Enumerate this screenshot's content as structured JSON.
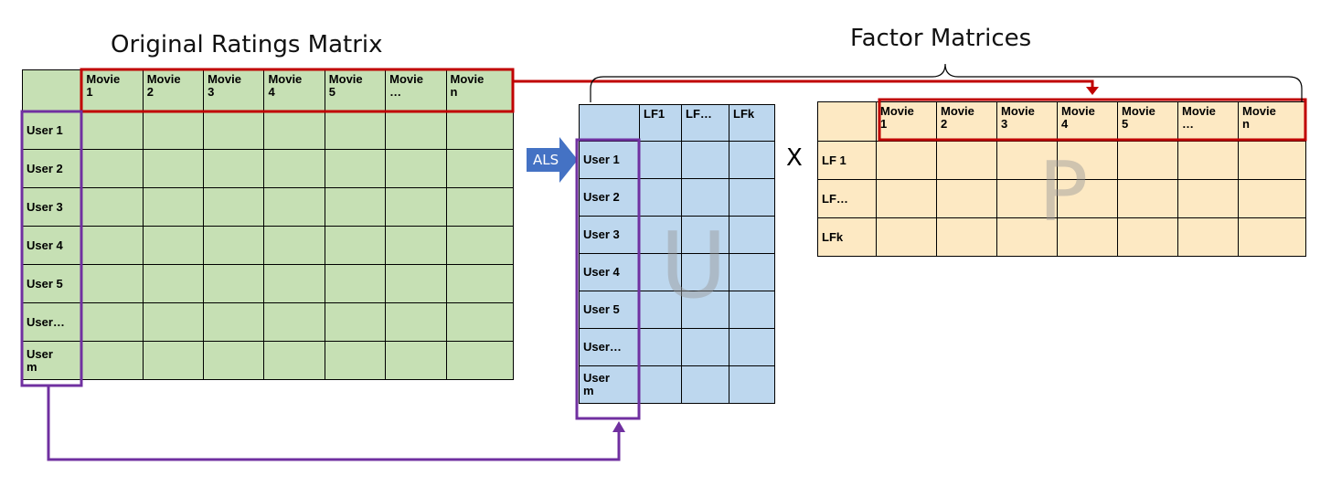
{
  "titles": {
    "original": "Original Ratings Matrix",
    "factor": "Factor Matrices"
  },
  "colors": {
    "ratings_fill": "#c6e0b4",
    "u_fill": "#bdd7ee",
    "p_fill": "#fde9c3",
    "movie_highlight": "#c00000",
    "user_highlight": "#7030a0",
    "als_arrow": "#4472c4"
  },
  "original_matrix": {
    "columns": [
      "Movie\n1",
      "Movie\n2",
      "Movie\n3",
      "Movie\n4",
      "Movie\n5",
      "Movie\n…",
      "Movie\nn"
    ],
    "rows": [
      "User 1",
      "User 2",
      "User 3",
      "User 4",
      "User 5",
      "User…",
      "User\nm"
    ]
  },
  "u_matrix": {
    "letter": "U",
    "columns": [
      "LF1",
      "LF…",
      "LFk"
    ],
    "rows": [
      "User 1",
      "User 2",
      "User 3",
      "User 4",
      "User 5",
      "User…",
      "User\nm"
    ]
  },
  "p_matrix": {
    "letter": "P",
    "columns": [
      "Movie\n1",
      "Movie\n2",
      "Movie\n3",
      "Movie\n4",
      "Movie\n5",
      "Movie\n…",
      "Movie\nn"
    ],
    "rows": [
      "LF 1",
      "LF…",
      "LFk"
    ]
  },
  "operators": {
    "als": "ALS",
    "times": "X"
  }
}
